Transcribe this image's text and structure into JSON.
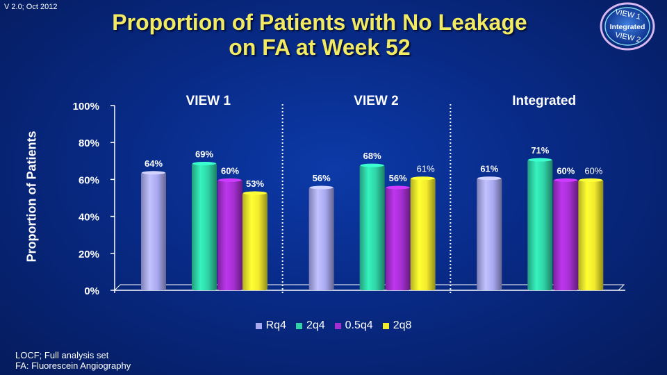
{
  "version": "V 2.0; Oct 2012",
  "title_line1": "Proportion of Patients with No Leakage",
  "title_line2": "on FA at Week 52",
  "badge": {
    "top": "VIEW 1",
    "middle": "Integrated",
    "bottom": "VIEW 2"
  },
  "footnotes": [
    "LOCF; Full analysis set",
    "FA: Fluorescein Angiography"
  ],
  "chart_data": {
    "type": "bar",
    "ylabel": "Proportion of Patients",
    "ylim": [
      0,
      100
    ],
    "yticks": [
      "0%",
      "20%",
      "40%",
      "60%",
      "80%",
      "100%"
    ],
    "grid": false,
    "legend_position": "bottom",
    "groups": [
      "VIEW 1",
      "VIEW 2",
      "Integrated"
    ],
    "series": [
      {
        "name": "Rq4",
        "color": "#a9a9f2",
        "values": [
          64,
          56,
          61
        ],
        "labels": [
          "64%",
          "56%",
          "61%"
        ]
      },
      {
        "name": "2q4",
        "color": "#2fd3a6",
        "values": [
          69,
          68,
          71
        ],
        "labels": [
          "69%",
          "68%",
          "71%"
        ]
      },
      {
        "name": "0.5q4",
        "color": "#a52fd0",
        "values": [
          60,
          56,
          60
        ],
        "labels": [
          "60%",
          "56%",
          "60%"
        ]
      },
      {
        "name": "2q8",
        "color": "#f2ea2c",
        "values": [
          53,
          61,
          60
        ],
        "labels": [
          "53%",
          "61%",
          "60%"
        ]
      }
    ]
  }
}
